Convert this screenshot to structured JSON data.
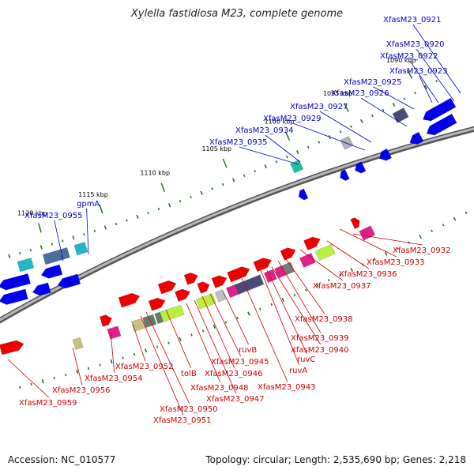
{
  "title": "Xylella fastidiosa M23, complete genome",
  "footer": {
    "accession": "Accession: NC_010577",
    "summary": "Topology: circular; Length: 2,535,690 bp; Genes: 2,218"
  },
  "colors": {
    "backbone": "#8a8a8a",
    "top_strand_label": "#0000cc",
    "bottom_strand_label": "#cc0000",
    "forward_gene": "#0000ee",
    "reverse_gene": "#ee0000",
    "gc_dot": "#1a7a1a"
  },
  "scale_ticks": [
    "1090 kbp",
    "1095 kbp",
    "1100 kbp",
    "1105 kbp",
    "1110 kbp",
    "1115 kbp",
    "1120 kbp"
  ],
  "top_labels": [
    "XfasM23_0921",
    "XfasM23_0920",
    "XfasM23_0922",
    "XfasM23_0923",
    "XfasM23_0925",
    "XfasM23_0926",
    "XfasM23_0927",
    "XfasM23_0929",
    "XfasM23_0934",
    "XfasM23_0935",
    "gpmA",
    "XfasM23_0955"
  ],
  "bottom_labels": [
    "XfasM23_0932",
    "XfasM23_0933",
    "XfasM23_0936",
    "XfasM23_0937",
    "XfasM23_0938",
    "XfasM23_0939",
    "XfasM23_0940",
    "ruvC",
    "ruvA",
    "XfasM23_0943",
    "ruvB",
    "XfasM23_0945",
    "XfasM23_0946",
    "XfasM23_0947",
    "XfasM23_0948",
    "tolB",
    "XfasM23_0950",
    "XfasM23_0951",
    "XfasM23_0952",
    "XfasM23_0954",
    "XfasM23_0956",
    "XfasM23_0959"
  ]
}
